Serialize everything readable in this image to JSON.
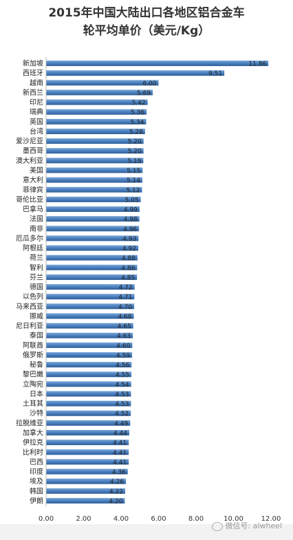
{
  "chart_data": {
    "type": "bar",
    "orientation": "horizontal",
    "title_lines": [
      "2015年中国大陆出口各地区铝合金车",
      "轮平均单价（美元/Kg）"
    ],
    "categories": [
      "新加坡",
      "西班牙",
      "越南",
      "新西兰",
      "印尼",
      "瑞典",
      "英国",
      "台湾",
      "爱沙尼亚",
      "墨西哥",
      "澳大利亚",
      "美国",
      "意大利",
      "菲律宾",
      "哥伦比亚",
      "巴拿马",
      "法国",
      "南非",
      "厄瓜多尔",
      "阿根廷",
      "荷兰",
      "智利",
      "芬兰",
      "德国",
      "以色列",
      "马来西亚",
      "挪威",
      "尼日利亚",
      "泰国",
      "阿联酋",
      "俄罗斯",
      "秘鲁",
      "黎巴嫩",
      "立陶宛",
      "日本",
      "土耳其",
      "沙特",
      "拉脱维亚",
      "加拿大",
      "伊拉克",
      "比利时",
      "巴西",
      "印度",
      "埃及",
      "韩国",
      "伊朗"
    ],
    "values": [
      11.86,
      9.51,
      6.0,
      5.69,
      5.42,
      5.36,
      5.34,
      5.28,
      5.2,
      5.2,
      5.19,
      5.15,
      5.14,
      5.12,
      5.05,
      4.99,
      4.98,
      4.96,
      4.93,
      4.92,
      4.88,
      4.86,
      4.85,
      4.72,
      4.71,
      4.7,
      4.68,
      4.65,
      4.63,
      4.6,
      4.59,
      4.56,
      4.55,
      4.54,
      4.53,
      4.53,
      4.52,
      4.49,
      4.44,
      4.41,
      4.41,
      4.41,
      4.36,
      4.26,
      4.22,
      4.2
    ],
    "value_labels": [
      "11.86",
      "9.51",
      "6.00",
      "5.69",
      "5.42",
      "5.36",
      "5.34",
      "5.28",
      "5.20",
      "5.20",
      "5.19",
      "5.15",
      "5.14",
      "5.12",
      "5.05",
      "4.99",
      "4.98",
      "4.96",
      "4.93",
      "4.92",
      "4.88",
      "4.86",
      "4.85",
      "4.72",
      "4.71",
      "4.70",
      "4.68",
      "4.65",
      "4.63",
      "4.60",
      "4.59",
      "4.56",
      "4.55",
      "4.54",
      "4.53",
      "4.53",
      "4.52",
      "4.49",
      "4.44",
      "4.41",
      "4.41",
      "4.41",
      "4.36",
      "4.26",
      "4.22",
      "4.20"
    ],
    "xlim": [
      0,
      12
    ],
    "ticks": [
      "0.00",
      "2.00",
      "4.00",
      "6.00",
      "8.00",
      "10.00",
      "12.00"
    ],
    "tick_values": [
      0,
      2,
      4,
      6,
      8,
      10,
      12
    ],
    "grid": false,
    "legend": "none",
    "bar_color": "#4a7fbe"
  },
  "watermark": {
    "text": "微信号: alwheel",
    "icon": "wechat-icon"
  }
}
